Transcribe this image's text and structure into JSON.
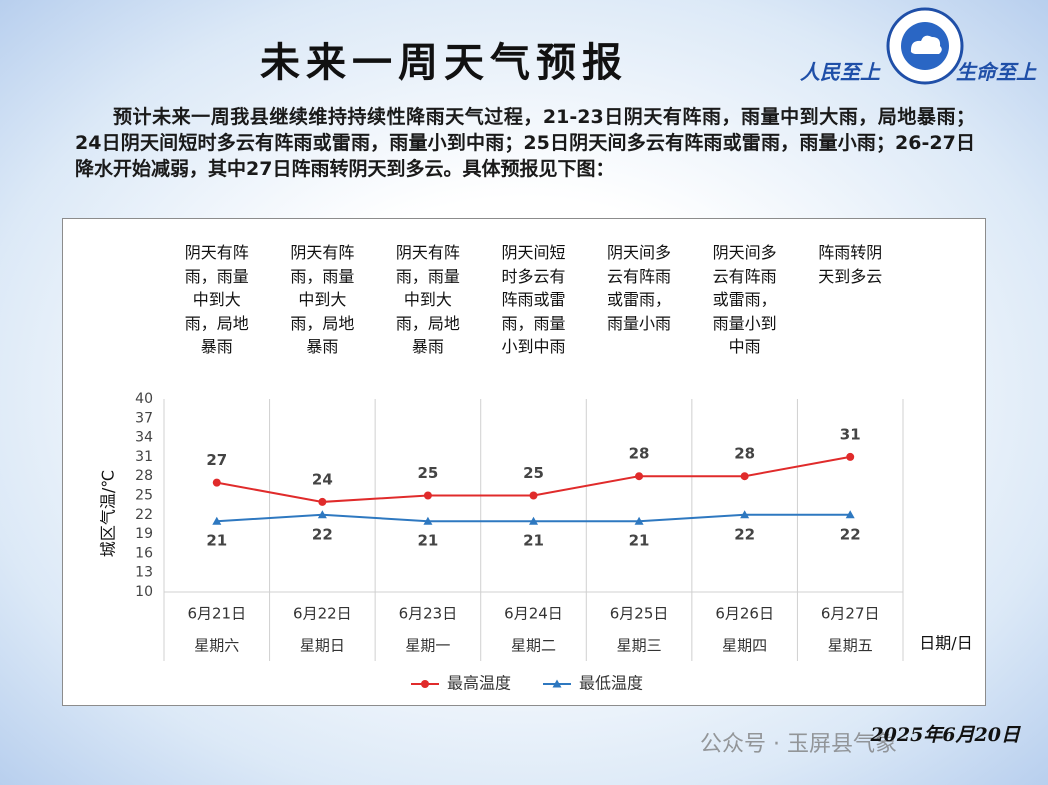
{
  "header": {
    "title": "未来一周天气预报",
    "slogans": [
      "人民至上",
      "生命至上"
    ]
  },
  "paragraph": "预计未来一周我县继续维持持续性降雨天气过程，21-23日阴天有阵雨，雨量中到大雨，局地暴雨；24日阴天间短时多云有阵雨或雷雨，雨量小到中雨；25日阴天间多云有阵雨或雷雨，雨量小雨；26-27日降水开始减弱，其中27日阵雨转阴天到多云。具体预报见下图：",
  "chart_data": {
    "type": "line",
    "y_label": "城区气温/℃",
    "x_label": "日期/日",
    "categories": [
      "6月21日",
      "6月22日",
      "6月23日",
      "6月24日",
      "6月25日",
      "6月26日",
      "6月27日"
    ],
    "weekdays": [
      "星期六",
      "星期日",
      "星期一",
      "星期二",
      "星期三",
      "星期四",
      "星期五"
    ],
    "descriptions": [
      "阴天有阵雨，雨量中到大雨，局地暴雨",
      "阴天有阵雨，雨量中到大雨，局地暴雨",
      "阴天有阵雨，雨量中到大雨，局地暴雨",
      "阴天间短时多云有阵雨或雷雨，雨量小到中雨",
      "阴天间多云有阵雨或雷雨，雨量小雨",
      "阴天间多云有阵雨或雷雨，雨量小到中雨",
      "阵雨转阴天到多云"
    ],
    "series": [
      {
        "name": "最高温度",
        "color": "#e02b2b",
        "marker": "circle",
        "values": [
          27,
          24,
          25,
          25,
          28,
          28,
          31
        ]
      },
      {
        "name": "最低温度",
        "color": "#2e78c0",
        "marker": "triangle",
        "values": [
          21,
          22,
          21,
          21,
          21,
          22,
          22
        ]
      }
    ],
    "ylim": [
      10,
      40
    ],
    "yticks": [
      10,
      13,
      16,
      19,
      22,
      25,
      28,
      31,
      34,
      37,
      40
    ],
    "legend": "bottom"
  },
  "footer": {
    "date": "2025年6月20日",
    "watermark": "公众号 · 玉屏县气象"
  }
}
